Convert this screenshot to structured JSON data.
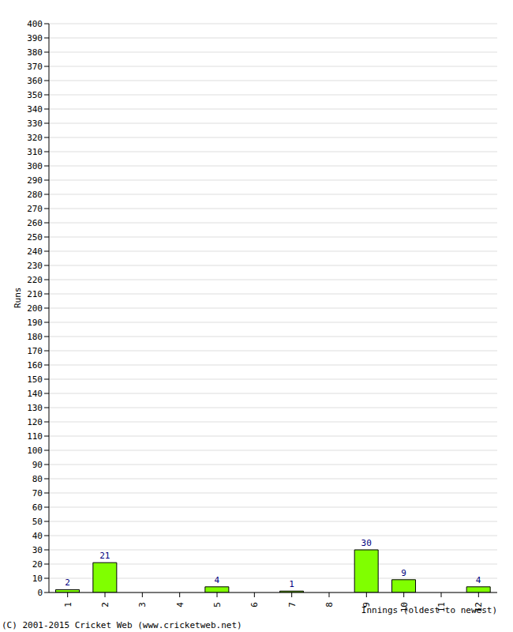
{
  "chart_data": {
    "type": "bar",
    "x_label": "Innings (oldest to newest)",
    "y_label": "Runs",
    "annotations": [
      "(C) 2001-2015 Cricket Web (www.cricketweb.net)"
    ],
    "categories": [
      "1",
      "2",
      "3",
      "4",
      "5",
      "6",
      "7",
      "8",
      "9",
      "10",
      "11",
      "12"
    ],
    "values": [
      2,
      21,
      0,
      0,
      4,
      0,
      1,
      0,
      30,
      9,
      0,
      4
    ],
    "color": "#80ff00",
    "ylim": [
      0,
      400
    ],
    "yticks": [
      0,
      10,
      20,
      30,
      40,
      50,
      60,
      70,
      80,
      90,
      100,
      110,
      120,
      130,
      140,
      150,
      160,
      170,
      180,
      190,
      200,
      210,
      220,
      230,
      240,
      250,
      260,
      270,
      280,
      290,
      300,
      310,
      320,
      330,
      340,
      350,
      360,
      370,
      380,
      390,
      400
    ],
    "grid": true,
    "data_labels": true
  }
}
